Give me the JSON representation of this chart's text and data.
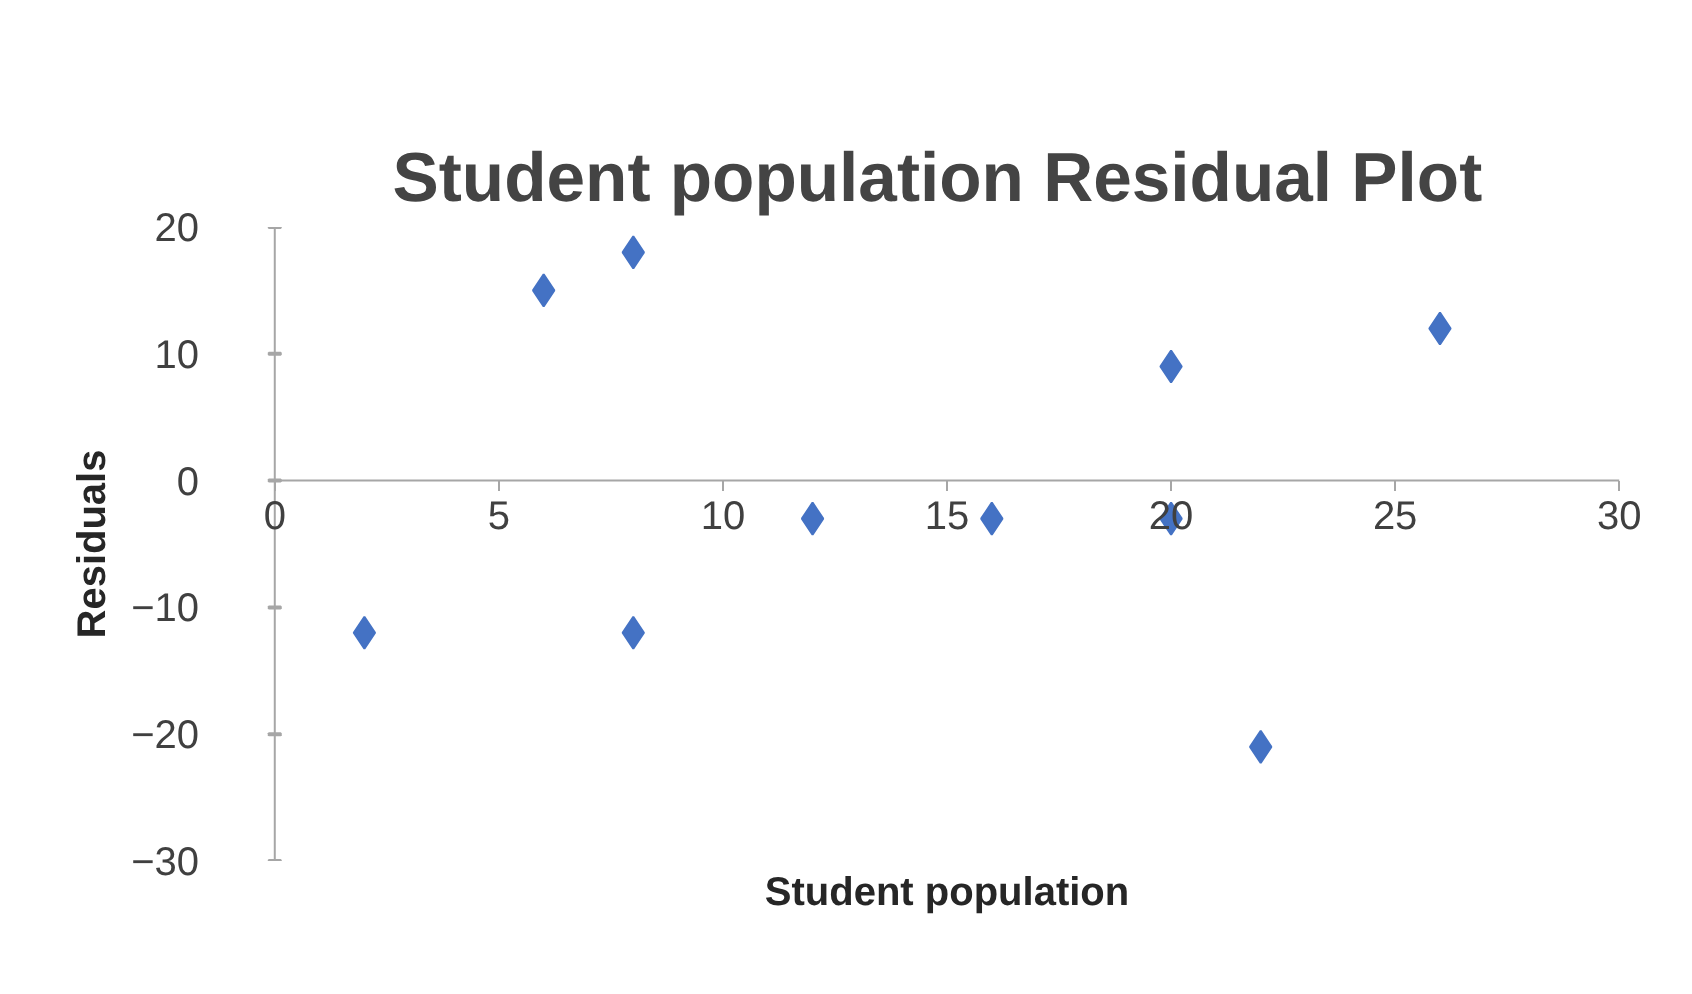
{
  "chart_data": {
    "type": "scatter",
    "title": "Student population  Residual Plot",
    "xlabel": "Student population",
    "ylabel": "Residuals",
    "x": [
      2,
      6,
      8,
      8,
      12,
      16,
      20,
      20,
      22,
      26
    ],
    "values": [
      -12,
      15,
      18,
      -12,
      -3,
      -3,
      9,
      -3,
      -21,
      12
    ],
    "color": "#4472c4",
    "marker": "diamond",
    "xlim": [
      0,
      30
    ],
    "xticks": [
      0,
      5,
      10,
      15,
      20,
      25,
      30
    ],
    "ylim": [
      -30,
      20
    ],
    "yticks": [
      -30,
      -20,
      -10,
      0,
      10,
      20
    ],
    "grid": false
  }
}
